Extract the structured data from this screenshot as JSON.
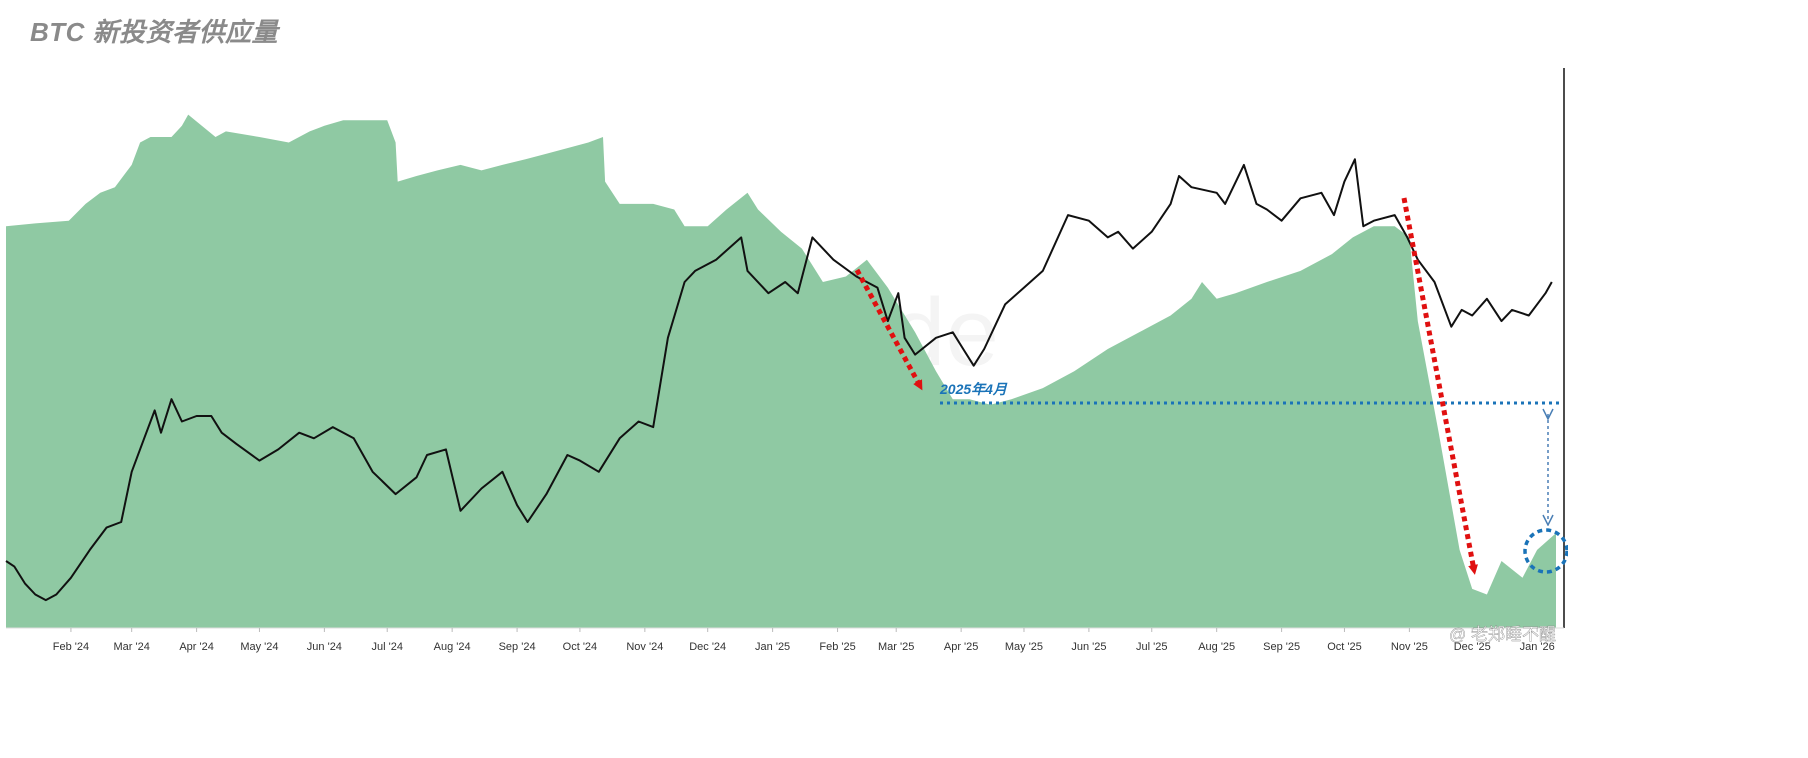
{
  "title": "BTC 新投资者供应量",
  "watermark": "glassnode",
  "credit": "@ 老郑睡不醒",
  "colors": {
    "area": "#8fc9a3",
    "price": "#111111",
    "arrow": "#e01010",
    "annotation": "#1a73b8",
    "axis": "#333333"
  },
  "chart_data": {
    "type": "area",
    "title": "BTC 新投资者供应量",
    "xlabel": "",
    "ylabel": "",
    "grid": false,
    "legend": "none",
    "x_tick_labels": [
      "Feb '24",
      "Mar '24",
      "Apr '24",
      "May '24",
      "Jun '24",
      "Jul '24",
      "Aug '24",
      "Sep '24",
      "Oct '24",
      "Nov '24",
      "Dec '24",
      "Jan '25",
      "Feb '25",
      "Mar '25",
      "Apr '25",
      "May '25",
      "Jun '25",
      "Jul '25",
      "Aug '25",
      "Sep '25",
      "Oct '25",
      "Nov '25",
      "Dec '25",
      "Jan '26"
    ],
    "series_note": "y values on a 0–100 relative scale (no y-axis printed)",
    "series": [
      {
        "kind": "area",
        "points": [
          [
            "2024-01-01",
            72
          ],
          [
            "2024-01-15",
            72.5
          ],
          [
            "2024-01-31",
            73
          ],
          [
            "2024-02-08",
            76
          ],
          [
            "2024-02-15",
            78
          ],
          [
            "2024-02-22",
            79
          ],
          [
            "2024-03-01",
            83
          ],
          [
            "2024-03-05",
            87
          ],
          [
            "2024-03-10",
            88
          ],
          [
            "2024-03-20",
            88
          ],
          [
            "2024-03-25",
            90
          ],
          [
            "2024-03-28",
            92
          ],
          [
            "2024-04-10",
            88
          ],
          [
            "2024-04-15",
            89
          ],
          [
            "2024-05-01",
            88
          ],
          [
            "2024-05-15",
            87
          ],
          [
            "2024-05-25",
            89
          ],
          [
            "2024-06-01",
            90
          ],
          [
            "2024-06-10",
            91
          ],
          [
            "2024-06-20",
            91
          ],
          [
            "2024-07-01",
            91
          ],
          [
            "2024-07-05",
            87
          ],
          [
            "2024-07-06",
            80
          ],
          [
            "2024-07-15",
            81
          ],
          [
            "2024-07-25",
            82
          ],
          [
            "2024-08-05",
            83
          ],
          [
            "2024-08-15",
            82
          ],
          [
            "2024-08-25",
            83
          ],
          [
            "2024-09-05",
            84
          ],
          [
            "2024-09-15",
            85
          ],
          [
            "2024-09-25",
            86
          ],
          [
            "2024-10-05",
            87
          ],
          [
            "2024-10-12",
            88
          ],
          [
            "2024-10-13",
            80
          ],
          [
            "2024-10-20",
            76
          ],
          [
            "2024-11-05",
            76
          ],
          [
            "2024-11-15",
            75
          ],
          [
            "2024-11-20",
            72
          ],
          [
            "2024-12-01",
            72
          ],
          [
            "2024-12-10",
            75
          ],
          [
            "2024-12-20",
            78
          ],
          [
            "2024-12-25",
            75
          ],
          [
            "2025-01-05",
            71
          ],
          [
            "2025-01-15",
            68
          ],
          [
            "2025-01-25",
            62
          ],
          [
            "2025-02-05",
            63
          ],
          [
            "2025-02-15",
            66
          ],
          [
            "2025-02-25",
            61
          ],
          [
            "2025-03-10",
            53
          ],
          [
            "2025-03-20",
            46
          ],
          [
            "2025-03-28",
            41
          ],
          [
            "2025-04-05",
            41
          ],
          [
            "2025-04-15",
            40
          ],
          [
            "2025-04-25",
            41
          ],
          [
            "2025-05-10",
            43
          ],
          [
            "2025-05-25",
            46
          ],
          [
            "2025-06-10",
            50
          ],
          [
            "2025-06-25",
            53
          ],
          [
            "2025-07-10",
            56
          ],
          [
            "2025-07-20",
            59
          ],
          [
            "2025-07-25",
            62
          ],
          [
            "2025-08-01",
            59
          ],
          [
            "2025-08-10",
            60
          ],
          [
            "2025-08-25",
            62
          ],
          [
            "2025-09-10",
            64
          ],
          [
            "2025-09-25",
            67
          ],
          [
            "2025-10-05",
            70
          ],
          [
            "2025-10-15",
            72
          ],
          [
            "2025-10-25",
            72
          ],
          [
            "2025-11-01",
            70
          ],
          [
            "2025-11-05",
            55
          ],
          [
            "2025-11-15",
            35
          ],
          [
            "2025-11-25",
            14
          ],
          [
            "2025-12-01",
            7
          ],
          [
            "2025-12-08",
            6
          ],
          [
            "2025-12-15",
            12
          ],
          [
            "2025-12-25",
            9
          ],
          [
            "2026-01-01",
            14
          ],
          [
            "2026-01-10",
            17
          ]
        ]
      },
      {
        "kind": "line",
        "points": [
          [
            "2024-01-01",
            12
          ],
          [
            "2024-01-05",
            11
          ],
          [
            "2024-01-10",
            8
          ],
          [
            "2024-01-15",
            6
          ],
          [
            "2024-01-20",
            5
          ],
          [
            "2024-01-25",
            6
          ],
          [
            "2024-02-01",
            9
          ],
          [
            "2024-02-10",
            14
          ],
          [
            "2024-02-18",
            18
          ],
          [
            "2024-02-25",
            19
          ],
          [
            "2024-03-01",
            28
          ],
          [
            "2024-03-07",
            34
          ],
          [
            "2024-03-12",
            39
          ],
          [
            "2024-03-15",
            35
          ],
          [
            "2024-03-20",
            41
          ],
          [
            "2024-03-25",
            37
          ],
          [
            "2024-04-01",
            38
          ],
          [
            "2024-04-08",
            38
          ],
          [
            "2024-04-13",
            35
          ],
          [
            "2024-04-20",
            33
          ],
          [
            "2024-05-01",
            30
          ],
          [
            "2024-05-10",
            32
          ],
          [
            "2024-05-20",
            35
          ],
          [
            "2024-05-27",
            34
          ],
          [
            "2024-06-05",
            36
          ],
          [
            "2024-06-15",
            34
          ],
          [
            "2024-06-24",
            28
          ],
          [
            "2024-07-05",
            24
          ],
          [
            "2024-07-15",
            27
          ],
          [
            "2024-07-20",
            31
          ],
          [
            "2024-07-29",
            32
          ],
          [
            "2024-08-05",
            21
          ],
          [
            "2024-08-15",
            25
          ],
          [
            "2024-08-25",
            28
          ],
          [
            "2024-09-01",
            22
          ],
          [
            "2024-09-06",
            19
          ],
          [
            "2024-09-15",
            24
          ],
          [
            "2024-09-25",
            31
          ],
          [
            "2024-10-01",
            30
          ],
          [
            "2024-10-10",
            28
          ],
          [
            "2024-10-20",
            34
          ],
          [
            "2024-10-29",
            37
          ],
          [
            "2024-11-05",
            36
          ],
          [
            "2024-11-12",
            52
          ],
          [
            "2024-11-20",
            62
          ],
          [
            "2024-11-25",
            64
          ],
          [
            "2024-12-05",
            66
          ],
          [
            "2024-12-17",
            70
          ],
          [
            "2024-12-20",
            64
          ],
          [
            "2024-12-30",
            60
          ],
          [
            "2025-01-07",
            62
          ],
          [
            "2025-01-13",
            60
          ],
          [
            "2025-01-20",
            70
          ],
          [
            "2025-01-30",
            66
          ],
          [
            "2025-02-10",
            63
          ],
          [
            "2025-02-20",
            61
          ],
          [
            "2025-02-25",
            55
          ],
          [
            "2025-03-02",
            60
          ],
          [
            "2025-03-05",
            52
          ],
          [
            "2025-03-10",
            49
          ],
          [
            "2025-03-20",
            52
          ],
          [
            "2025-03-28",
            53
          ],
          [
            "2025-04-02",
            50
          ],
          [
            "2025-04-07",
            47
          ],
          [
            "2025-04-12",
            50
          ],
          [
            "2025-04-22",
            58
          ],
          [
            "2025-05-01",
            61
          ],
          [
            "2025-05-10",
            64
          ],
          [
            "2025-05-22",
            74
          ],
          [
            "2025-06-01",
            73
          ],
          [
            "2025-06-10",
            70
          ],
          [
            "2025-06-15",
            71
          ],
          [
            "2025-06-22",
            68
          ],
          [
            "2025-07-01",
            71
          ],
          [
            "2025-07-10",
            76
          ],
          [
            "2025-07-14",
            81
          ],
          [
            "2025-07-20",
            79
          ],
          [
            "2025-08-01",
            78
          ],
          [
            "2025-08-05",
            76
          ],
          [
            "2025-08-14",
            83
          ],
          [
            "2025-08-20",
            76
          ],
          [
            "2025-08-25",
            75
          ],
          [
            "2025-09-01",
            73
          ],
          [
            "2025-09-10",
            77
          ],
          [
            "2025-09-20",
            78
          ],
          [
            "2025-09-26",
            74
          ],
          [
            "2025-10-01",
            80
          ],
          [
            "2025-10-06",
            84
          ],
          [
            "2025-10-10",
            72
          ],
          [
            "2025-10-15",
            73
          ],
          [
            "2025-10-25",
            74
          ],
          [
            "2025-10-31",
            70
          ],
          [
            "2025-11-05",
            66
          ],
          [
            "2025-11-13",
            62
          ],
          [
            "2025-11-21",
            54
          ],
          [
            "2025-11-26",
            57
          ],
          [
            "2025-12-01",
            56
          ],
          [
            "2025-12-08",
            59
          ],
          [
            "2025-12-15",
            55
          ],
          [
            "2025-12-20",
            57
          ],
          [
            "2025-12-28",
            56
          ],
          [
            "2026-01-05",
            60
          ],
          [
            "2026-01-08",
            62
          ]
        ]
      }
    ],
    "annotations": [
      {
        "text": "2025年4月"
      }
    ]
  }
}
